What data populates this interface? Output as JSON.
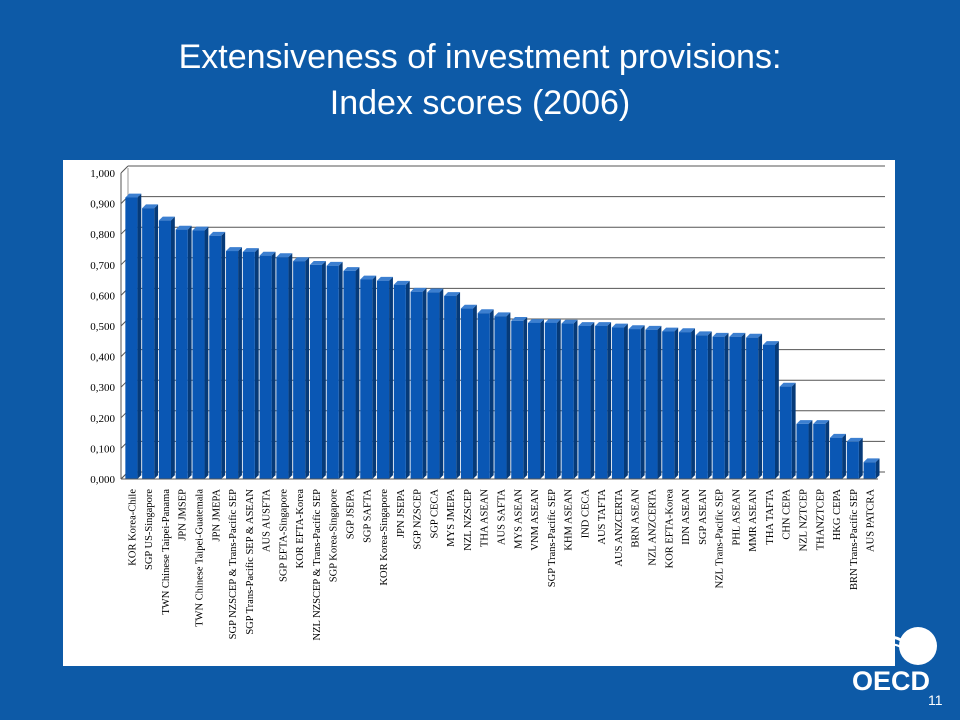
{
  "slide": {
    "title_line1": "Extensiveness of investment provisions:",
    "title_line2": "Index scores (2006)",
    "page_number": "11",
    "logo_text": "OECD"
  },
  "colors": {
    "background": "#0d5aa7",
    "bar_fill": "#0a57b4",
    "bar_side": "#063a78",
    "bar_top": "#3c7fd0"
  },
  "chart_data": {
    "type": "bar",
    "title": "",
    "xlabel": "",
    "ylabel": "",
    "ylim": [
      0,
      1
    ],
    "yticks": [
      0,
      0.1,
      0.2,
      0.3,
      0.4,
      0.5,
      0.6,
      0.7,
      0.8,
      0.9,
      1.0
    ],
    "ytick_labels": [
      "0,000",
      "0,100",
      "0,200",
      "0,300",
      "0,400",
      "0,500",
      "0,600",
      "0,700",
      "0,800",
      "0,900",
      "1,000"
    ],
    "grid": true,
    "categories": [
      "KOR Korea-Chile",
      "SGP US-Singapore",
      "TWN Chinese Taipei-Panama",
      "JPN JMSEP",
      "TWN Chinese Taipei-Guatemala",
      "JPN JMEPA",
      "SGP NZSCEP & Trans-Pacific SEP",
      "SGP Trans-Pacific SEP & ASEAN",
      "AUS AUSFTA",
      "SGP EFTA-Singapore",
      "KOR EFTA-Korea",
      "NZL NZSCEP & Trans-Pacific SEP",
      "SGP Korea-Singapore",
      "SGP JSEPA",
      "SGP SAFTA",
      "KOR Korea-Singapore",
      "JPN JSEPA",
      "SGP NZSCEP",
      "SGP CECA",
      "MYS JMEPA",
      "NZL NZSCEP",
      "THA ASEAN",
      "AUS SAFTA",
      "MYS ASEAN",
      "VNM ASEAN",
      "SGP Trans-Pacific SEP",
      "KHM ASEAN",
      "IND CECA",
      "AUS TAFTA",
      "AUS ANZCERTA",
      "BRN ASEAN",
      "NZL ANZCERTA",
      "KOR EFTA-Korea",
      "IDN ASEAN",
      "SGP ASEAN",
      "NZL Trans-Pacific SEP",
      "PHL ASEAN",
      "MMR ASEAN",
      "THA TAFTA",
      "CHN CEPA",
      "NZL NZTCEP",
      "THANZTCEP",
      "HKG CEPA",
      "BRN Trans-Pacific SEP",
      "AUS PATCRA"
    ],
    "values": [
      0.92,
      0.885,
      0.845,
      0.815,
      0.812,
      0.795,
      0.745,
      0.742,
      0.73,
      0.725,
      0.712,
      0.7,
      0.697,
      0.68,
      0.652,
      0.648,
      0.635,
      0.612,
      0.61,
      0.598,
      0.557,
      0.542,
      0.532,
      0.517,
      0.51,
      0.51,
      0.508,
      0.5,
      0.5,
      0.495,
      0.49,
      0.488,
      0.482,
      0.48,
      0.47,
      0.465,
      0.465,
      0.462,
      0.438,
      0.302,
      0.18,
      0.18,
      0.135,
      0.122,
      0.055
    ]
  }
}
